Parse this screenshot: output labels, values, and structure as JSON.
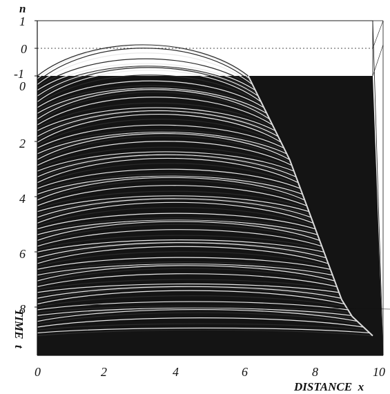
{
  "chart_data": {
    "type": "surface",
    "xlabel": "DISTANCE  x",
    "ylabel": "TIME  t",
    "zlabel": "n",
    "xlim": [
      0,
      10
    ],
    "tlim": [
      0,
      10
    ],
    "zlim": [
      -1,
      1
    ],
    "x_ticks": [
      "0",
      "2",
      "4",
      "6",
      "8",
      "10"
    ],
    "t_ticks": [
      "0",
      "2",
      "4",
      "6",
      "8"
    ],
    "z_ticks": [
      "1",
      "0",
      "-1"
    ],
    "front_profile": {
      "t": [
        0,
        1,
        2,
        3,
        4,
        5,
        6,
        7,
        8,
        8.6,
        9.3
      ],
      "x": [
        6.1,
        6.5,
        6.9,
        7.3,
        7.6,
        7.9,
        8.2,
        8.5,
        8.8,
        9.1,
        9.7
      ]
    },
    "grid": false,
    "legend": "none"
  }
}
